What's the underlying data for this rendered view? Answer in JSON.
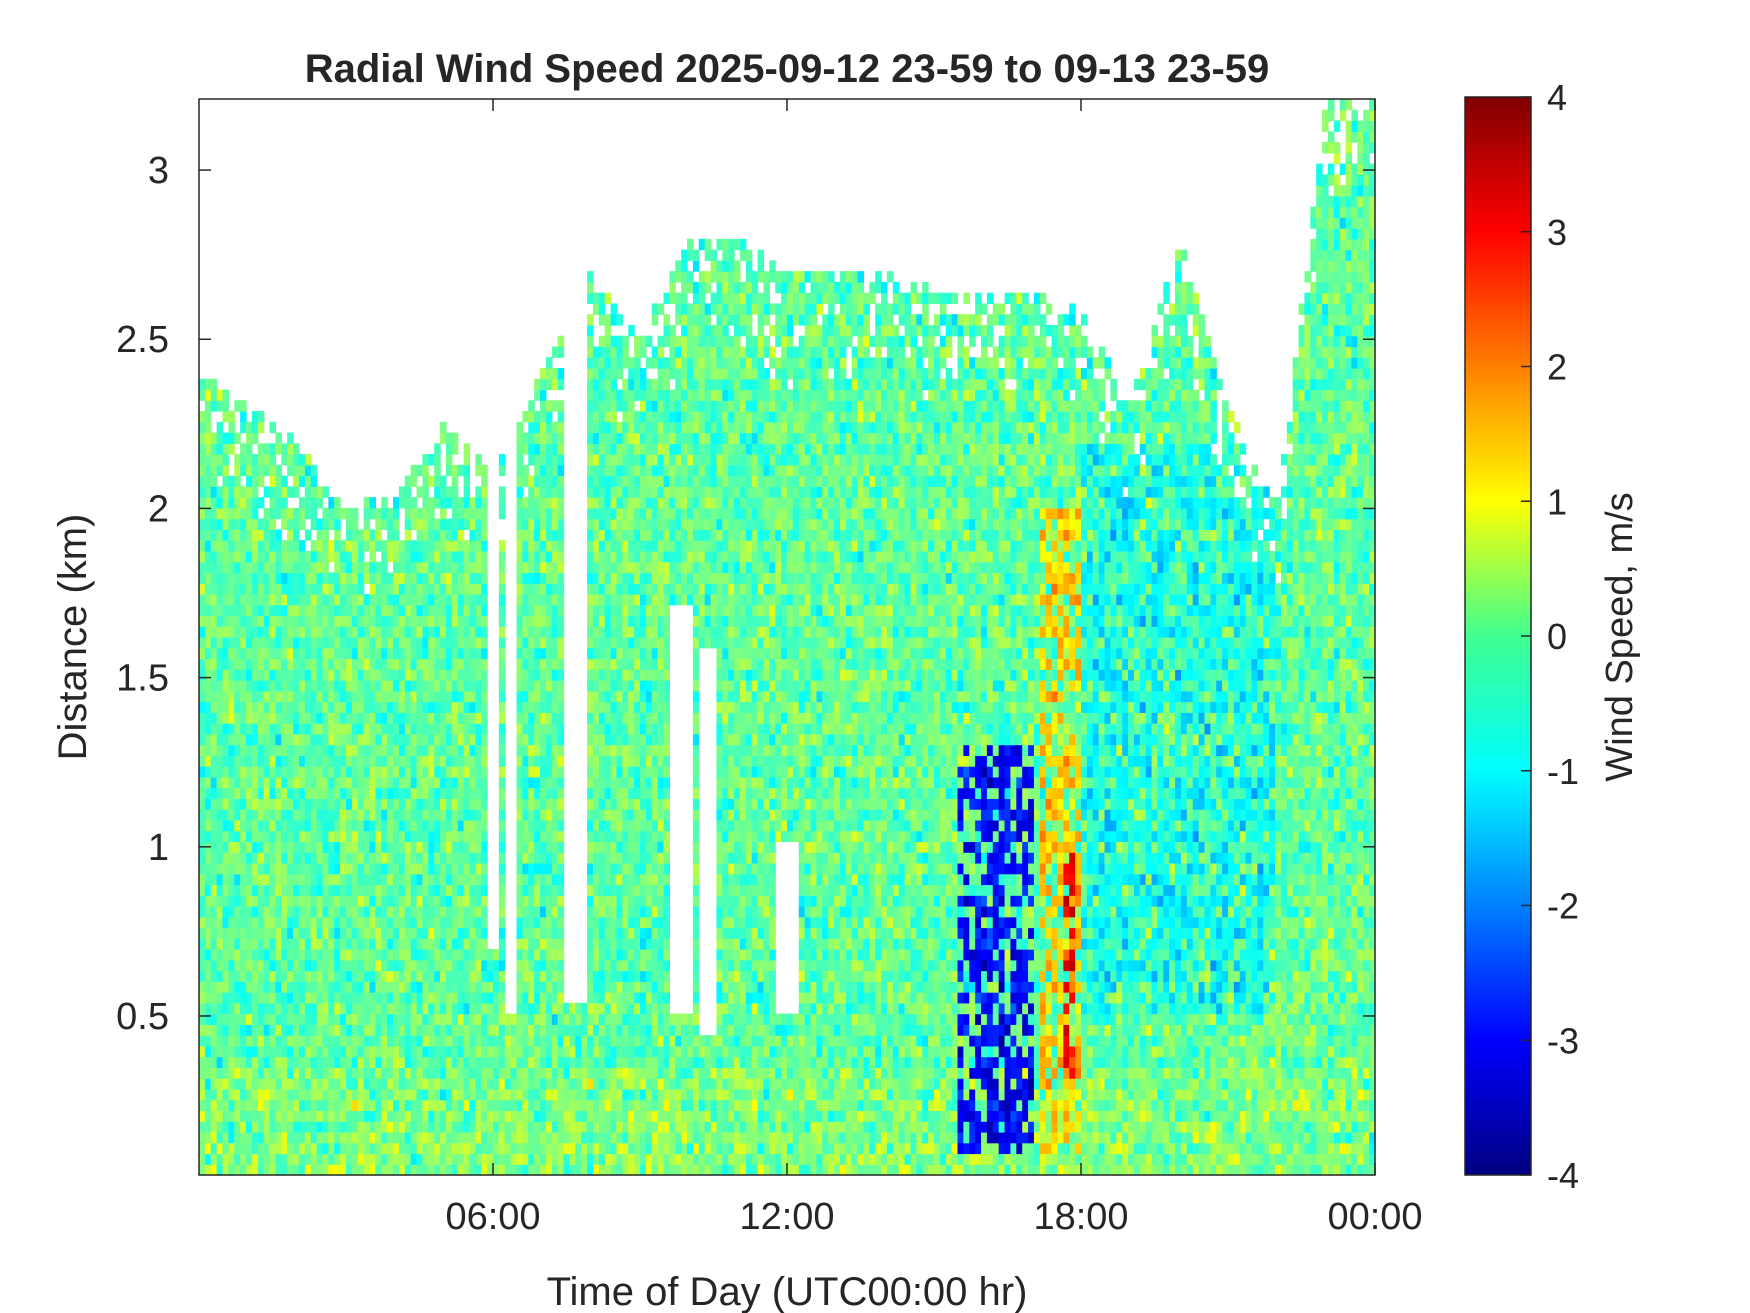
{
  "chart_data": {
    "type": "heatmap",
    "title": "Radial Wind Speed 2025-09-12 23-59 to 09-13 23-59",
    "xlabel": "Time of Day (UTC00:00 hr)",
    "ylabel": "Distance (km)",
    "x_range_hours": [
      0,
      24
    ],
    "x_ticks": [
      {
        "hour": 6,
        "label": "06:00"
      },
      {
        "hour": 12,
        "label": "12:00"
      },
      {
        "hour": 18,
        "label": "18:00"
      },
      {
        "hour": 24,
        "label": "00:00"
      }
    ],
    "ylim": [
      0.03,
      3.21
    ],
    "y_ticks": [
      {
        "value": 0.5,
        "label": "0.5"
      },
      {
        "value": 1,
        "label": "1"
      },
      {
        "value": 1.5,
        "label": "1.5"
      },
      {
        "value": 2,
        "label": "2"
      },
      {
        "value": 2.5,
        "label": "2.5"
      },
      {
        "value": 3,
        "label": "3"
      }
    ],
    "colorbar": {
      "label": "Wind Speed, m/s",
      "range": [
        -4,
        4
      ],
      "colormap": "jet",
      "ticks": [
        {
          "value": 4,
          "label": "4"
        },
        {
          "value": 3,
          "label": "3"
        },
        {
          "value": 2,
          "label": "2"
        },
        {
          "value": 1,
          "label": "1"
        },
        {
          "value": 0,
          "label": "0"
        },
        {
          "value": -1,
          "label": "-1"
        },
        {
          "value": -2,
          "label": "-2"
        },
        {
          "value": -3,
          "label": "-3"
        },
        {
          "value": -4,
          "label": "-4"
        }
      ]
    },
    "data_top_km_by_hour": [
      {
        "hour": 0,
        "top_km": 2.4
      },
      {
        "hour": 1,
        "top_km": 2.3
      },
      {
        "hour": 2,
        "top_km": 2.2
      },
      {
        "hour": 3,
        "top_km": 2.0
      },
      {
        "hour": 4,
        "top_km": 2.05
      },
      {
        "hour": 5,
        "top_km": 2.25
      },
      {
        "hour": 6,
        "top_km": 2.1
      },
      {
        "hour": 7,
        "top_km": 2.4
      },
      {
        "hour": 8,
        "top_km": 2.7
      },
      {
        "hour": 9,
        "top_km": 2.5
      },
      {
        "hour": 10,
        "top_km": 2.8
      },
      {
        "hour": 11,
        "top_km": 2.8
      },
      {
        "hour": 12,
        "top_km": 2.7
      },
      {
        "hour": 13,
        "top_km": 2.7
      },
      {
        "hour": 14,
        "top_km": 2.7
      },
      {
        "hour": 15,
        "top_km": 2.65
      },
      {
        "hour": 16,
        "top_km": 2.65
      },
      {
        "hour": 17,
        "top_km": 2.65
      },
      {
        "hour": 18,
        "top_km": 2.6
      },
      {
        "hour": 19,
        "top_km": 2.3
      },
      {
        "hour": 20,
        "top_km": 2.8
      },
      {
        "hour": 21,
        "top_km": 2.3
      },
      {
        "hour": 22,
        "top_km": 2.0
      },
      {
        "hour": 23,
        "top_km": 3.2
      },
      {
        "hour": 24,
        "top_km": 3.2
      }
    ],
    "features": [
      {
        "hours": [
          15.5,
          17.0
        ],
        "km": [
          0.1,
          1.3
        ],
        "speed_ms": -3.0
      },
      {
        "hours": [
          17.2,
          18.0
        ],
        "km": [
          0.1,
          2.0
        ],
        "speed_ms": 1.5
      },
      {
        "hours": [
          17.6,
          17.9
        ],
        "km": [
          0.3,
          1.0
        ],
        "speed_ms": 3.0
      },
      {
        "hours": [
          18.0,
          22.0
        ],
        "km": [
          0.5,
          2.2
        ],
        "speed_ms": -1.0
      }
    ]
  }
}
